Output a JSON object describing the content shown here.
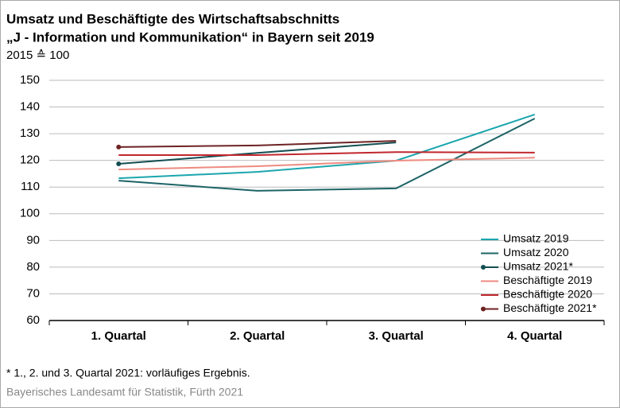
{
  "chart_data": {
    "type": "line",
    "title": [
      "Umsatz und Beschäftigte des Wirtschaftsabschnitts",
      "„J - Information und Kommunikation“ in Bayern seit 2019"
    ],
    "subtitle": "2015 ≙ 100",
    "categories": [
      "1. Quartal",
      "2. Quartal",
      "3. Quartal",
      "4. Quartal"
    ],
    "series": [
      {
        "name": "Umsatz 2019",
        "color": "#1ba6ae",
        "values": [
          113.3,
          115.7,
          119.9,
          137.2
        ]
      },
      {
        "name": "Umsatz 2020",
        "color": "#1d6466",
        "values": [
          112.4,
          108.6,
          109.5,
          135.7
        ]
      },
      {
        "name": "Umsatz 2021*",
        "color": "#134e52",
        "marker": "dot",
        "values": [
          118.7,
          122.8,
          126.7,
          null
        ]
      },
      {
        "name": "Beschäftigte 2019",
        "color": "#ee8b80",
        "values": [
          116.6,
          117.8,
          119.9,
          121.0
        ]
      },
      {
        "name": "Beschäftigte 2020",
        "color": "#c1272d",
        "values": [
          122.0,
          122.0,
          123.1,
          122.9
        ]
      },
      {
        "name": "Beschäftigte 2021*",
        "color": "#6e2323",
        "marker": "dot",
        "values": [
          125.0,
          125.6,
          127.3,
          null
        ]
      }
    ],
    "ylim": [
      60,
      150
    ],
    "yticks": [
      60,
      70,
      80,
      90,
      100,
      110,
      120,
      130,
      140,
      150
    ],
    "grid": true,
    "legend": "lower right",
    "footnote": "*  1., 2. und 3. Quartal 2021: vorläufiges Ergebnis.",
    "source": "Bayerisches Landesamt für Statistik, Fürth 2021"
  }
}
